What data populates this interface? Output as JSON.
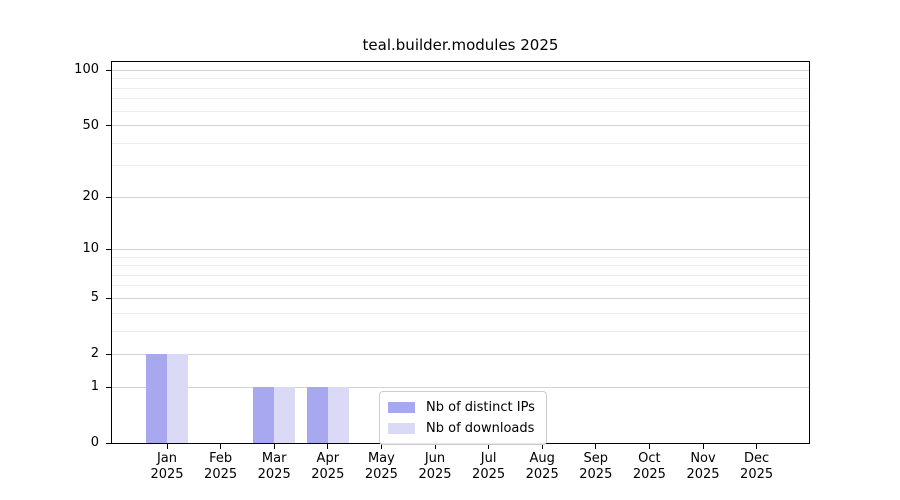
{
  "chart_data": {
    "type": "bar",
    "title": "teal.builder.modules 2025",
    "categories": [
      "Jan",
      "Feb",
      "Mar",
      "Apr",
      "May",
      "Jun",
      "Jul",
      "Aug",
      "Sep",
      "Oct",
      "Nov",
      "Dec"
    ],
    "category_year": "2025",
    "series": [
      {
        "name": "Nb of distinct IPs",
        "color": "#a8a8f0",
        "values": [
          2,
          0,
          1,
          1,
          0,
          0,
          0,
          0,
          0,
          0,
          0,
          0
        ]
      },
      {
        "name": "Nb of downloads",
        "color": "#dadaf6",
        "values": [
          2,
          0,
          1,
          1,
          0,
          0,
          0,
          0,
          0,
          0,
          0,
          0
        ]
      }
    ],
    "yscale": "log1p",
    "ylim": [
      0,
      111
    ],
    "y_major_ticks": [
      0,
      1,
      2,
      5,
      10,
      20,
      50,
      100
    ],
    "y_minor_ticks": [
      3,
      4,
      6,
      7,
      8,
      9,
      30,
      40,
      60,
      70,
      80,
      90
    ],
    "grid": true,
    "legend_position": "lower center"
  },
  "colors": {
    "background": "#ffffff",
    "axis": "#000000",
    "grid_major": "#d2d2d2",
    "grid_minor": "#ececec",
    "legend_border": "#cccccc",
    "bar_distinct_ips": "#a8a8f0",
    "bar_downloads": "#dadaf6"
  }
}
